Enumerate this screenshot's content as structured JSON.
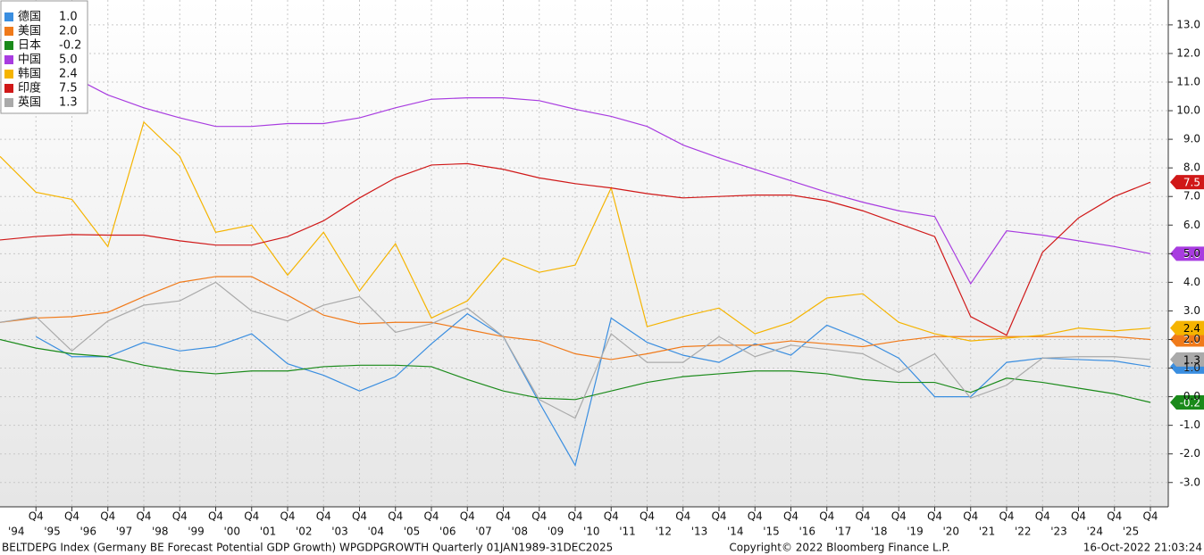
{
  "chart_data": {
    "type": "line",
    "categories": [
      null,
      "Q4",
      "Q4",
      "Q4",
      "Q4",
      "Q4",
      "Q4",
      "Q4",
      "Q4",
      "Q4",
      "Q4",
      "Q4",
      "Q4",
      "Q4",
      "Q4",
      "Q4",
      "Q4",
      "Q4",
      "Q4",
      "Q4",
      "Q4",
      "Q4",
      "Q4",
      "Q4",
      "Q4",
      "Q4",
      "Q4",
      "Q4",
      "Q4",
      "Q4",
      "Q4",
      "Q4",
      "Q4"
    ],
    "years": [
      "'94",
      "'95",
      "'96",
      "'97",
      "'98",
      "'99",
      "'00",
      "'01",
      "'02",
      "'03",
      "'04",
      "'05",
      "'06",
      "'07",
      "'08",
      "'09",
      "'10",
      "'11",
      "'12",
      "'13",
      "'14",
      "'15",
      "'16",
      "'17",
      "'18",
      "'19",
      "'20",
      "'21",
      "'22",
      "'23",
      "'24",
      "'25"
    ],
    "ylim": [
      -3.85,
      13.87
    ],
    "yticks": [
      {
        "value": 13,
        "label": "13.0"
      },
      {
        "value": 12,
        "label": "12.0"
      },
      {
        "value": 11,
        "label": "11.0"
      },
      {
        "value": 10,
        "label": "10.0"
      },
      {
        "value": 9,
        "label": "9.0"
      },
      {
        "value": 8,
        "label": "8.0"
      },
      {
        "value": 7,
        "label": "7.0"
      },
      {
        "value": 6,
        "label": "6.0"
      },
      {
        "value": 5,
        "label": "5.0"
      },
      {
        "value": 4,
        "label": "4.0"
      },
      {
        "value": 3,
        "label": "3.0"
      },
      {
        "value": 2,
        "label": "2.0"
      },
      {
        "value": 1,
        "label": "1.0"
      },
      {
        "value": 0,
        "label": "0.0"
      },
      {
        "value": -1,
        "label": "-1.0"
      },
      {
        "value": -2,
        "label": "-2.0"
      },
      {
        "value": -3,
        "label": "-3.0"
      }
    ],
    "grid": true,
    "legend": "upper left",
    "series": [
      {
        "name": "德国",
        "last_label": "1.0",
        "color": "#3a8ee0",
        "values": [
          null,
          2.1,
          1.4,
          1.4,
          1.9,
          1.6,
          1.75,
          2.2,
          1.15,
          0.75,
          0.2,
          0.7,
          1.85,
          2.9,
          2.1,
          -0.2,
          -2.4,
          2.75,
          1.9,
          1.45,
          1.2,
          1.85,
          1.45,
          2.5,
          2.0,
          1.35,
          0.0,
          0.0,
          1.2,
          1.35,
          1.3,
          1.25,
          1.05
        ]
      },
      {
        "name": "美国",
        "last_label": "2.0",
        "color": "#f07a1a",
        "values": [
          2.6,
          2.75,
          2.8,
          2.95,
          3.5,
          4.0,
          4.2,
          4.2,
          3.55,
          2.85,
          2.55,
          2.6,
          2.6,
          2.35,
          2.1,
          1.95,
          1.5,
          1.3,
          1.5,
          1.75,
          1.8,
          1.8,
          1.95,
          1.85,
          1.75,
          1.95,
          2.1,
          2.1,
          2.1,
          2.1,
          2.1,
          2.1,
          2.0
        ]
      },
      {
        "name": "日本",
        "last_label": "-0.2",
        "color": "#1a8a1a",
        "values": [
          2.0,
          1.7,
          1.5,
          1.4,
          1.1,
          0.9,
          0.8,
          0.9,
          0.9,
          1.05,
          1.1,
          1.1,
          1.05,
          0.6,
          0.2,
          -0.05,
          -0.1,
          0.2,
          0.5,
          0.7,
          0.8,
          0.9,
          0.9,
          0.8,
          0.6,
          0.5,
          0.5,
          0.15,
          0.65,
          0.5,
          0.3,
          0.1,
          -0.2
        ]
      },
      {
        "name": "中国",
        "last_label": "5.0",
        "color": "#a83ce0",
        "values": [
          12.47,
          11.85,
          11.2,
          10.55,
          10.1,
          9.75,
          9.45,
          9.45,
          9.55,
          9.55,
          9.75,
          10.1,
          10.4,
          10.45,
          10.45,
          10.35,
          10.05,
          9.8,
          9.45,
          8.8,
          8.35,
          7.95,
          7.55,
          7.15,
          6.8,
          6.5,
          6.3,
          3.95,
          5.8,
          5.65,
          5.45,
          5.25,
          5.0
        ]
      },
      {
        "name": "韩国",
        "last_label": "2.4",
        "color": "#f5b400",
        "values": [
          8.4,
          7.15,
          6.9,
          5.25,
          9.6,
          8.4,
          5.75,
          6.0,
          4.25,
          5.75,
          3.7,
          5.35,
          2.75,
          3.35,
          4.85,
          4.35,
          4.6,
          7.3,
          2.45,
          2.8,
          3.1,
          2.2,
          2.6,
          3.45,
          3.6,
          2.6,
          2.2,
          1.95,
          2.05,
          2.15,
          2.4,
          2.3,
          2.4
        ]
      },
      {
        "name": "印度",
        "last_label": "7.5",
        "color": "#d01818",
        "values": [
          5.48,
          5.6,
          5.67,
          5.65,
          5.65,
          5.45,
          5.3,
          5.3,
          5.6,
          6.15,
          6.95,
          7.65,
          8.1,
          8.15,
          7.95,
          7.65,
          7.45,
          7.3,
          7.1,
          6.95,
          7.0,
          7.05,
          7.05,
          6.85,
          6.5,
          6.05,
          5.6,
          2.8,
          2.15,
          5.05,
          6.25,
          7.0,
          7.5
        ]
      },
      {
        "name": "英国",
        "last_label": "1.3",
        "color": "#aaaaaa",
        "values": [
          2.6,
          2.8,
          1.6,
          2.65,
          3.2,
          3.35,
          4.0,
          3.0,
          2.65,
          3.2,
          3.5,
          2.25,
          2.55,
          3.1,
          2.1,
          -0.1,
          -0.75,
          2.2,
          1.2,
          1.2,
          2.1,
          1.4,
          1.8,
          1.65,
          1.5,
          0.85,
          1.5,
          -0.05,
          0.4,
          1.35,
          1.4,
          1.4,
          1.3
        ]
      }
    ],
    "footer": {
      "left": "BELTDEPG Index (Germany BE Forecast Potential GDP Growth) WPGDPGROWTH  Quarterly 01JAN1989-31DEC2025",
      "center": "Copyright© 2022 Bloomberg Finance L.P.",
      "right": "16-Oct-2022 21:03:24"
    }
  }
}
